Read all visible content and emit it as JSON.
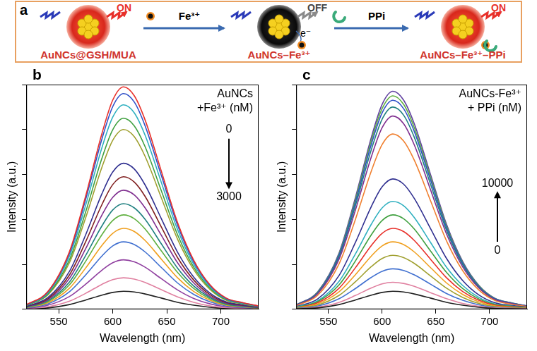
{
  "diagram": {
    "panel": "a",
    "states": [
      {
        "label": "AuNCs@GSH/MUA",
        "emission": "ON"
      },
      {
        "label": "AuNCs–Fe³⁺",
        "emission": "OFF",
        "electron": "e⁻"
      },
      {
        "label": "AuNCs–Fe³⁺–PPi",
        "emission": "ON"
      }
    ],
    "steps": [
      {
        "reagent": "Fe³⁺"
      },
      {
        "reagent": "PPi"
      }
    ]
  },
  "chart_data": [
    {
      "type": "line",
      "panel": "b",
      "xlabel": "Wavelength (nm)",
      "ylabel": "Intensity (a.u.)",
      "xlim": [
        520,
        735
      ],
      "ylim": [
        0,
        100
      ],
      "xticks": [
        550,
        600,
        650,
        700
      ],
      "yticks": [
        0,
        20,
        40,
        60,
        80,
        100
      ],
      "tick_labels": "x",
      "grid": false,
      "annotation": {
        "text": [
          "AuNCs",
          "+Fe³⁺ (nM)"
        ],
        "arrow_labels": [
          0,
          3000
        ]
      },
      "x": [
        520,
        540,
        560,
        575,
        590,
        600,
        610,
        620,
        630,
        645,
        660,
        675,
        690,
        705,
        720,
        735
      ],
      "series": [
        {
          "color": "#e8302a",
          "values": [
            2.0,
            7.9,
            25.7,
            50.5,
            78.2,
            93.1,
            99,
            95.0,
            84.2,
            61.4,
            38.6,
            21.8,
            10.9,
            5.0,
            3.0,
            1.5
          ]
        },
        {
          "color": "#3050c8",
          "values": [
            1.9,
            7.7,
            25.0,
            49.0,
            75.8,
            90.2,
            96,
            92.2,
            81.6,
            59.5,
            37.4,
            21.1,
            10.6,
            4.8,
            2.9,
            1.4
          ]
        },
        {
          "color": "#30b0c0",
          "values": [
            1.8,
            7.3,
            23.7,
            46.4,
            71.9,
            85.5,
            91,
            87.4,
            77.4,
            56.4,
            35.5,
            20.0,
            10.0,
            4.6,
            2.7,
            1.4
          ]
        },
        {
          "color": "#40a040",
          "values": [
            1.7,
            6.8,
            22.1,
            43.4,
            67.2,
            79.9,
            85,
            81.6,
            72.3,
            52.7,
            33.2,
            18.7,
            9.4,
            4.3,
            2.6,
            1.3
          ]
        },
        {
          "color": "#a0a030",
          "values": [
            1.6,
            6.4,
            20.8,
            40.8,
            63.2,
            75.2,
            80,
            76.8,
            68.0,
            49.6,
            31.2,
            17.6,
            8.8,
            4.0,
            2.4,
            1.2
          ]
        },
        {
          "color": "#303090",
          "values": [
            1.3,
            5.2,
            16.9,
            33.2,
            51.4,
            61.1,
            65,
            62.4,
            55.3,
            40.3,
            25.4,
            14.3,
            7.2,
            3.3,
            2.0,
            1.0
          ]
        },
        {
          "color": "#802020",
          "values": [
            1.2,
            4.7,
            15.3,
            30.1,
            46.6,
            55.5,
            59,
            56.6,
            50.2,
            36.6,
            23.0,
            13.0,
            6.5,
            3.0,
            1.8,
            0.9
          ]
        },
        {
          "color": "#803090",
          "values": [
            1.1,
            4.2,
            13.8,
            27.0,
            41.9,
            49.8,
            53,
            50.9,
            45.1,
            32.9,
            20.7,
            11.7,
            5.8,
            2.7,
            1.6,
            0.8
          ]
        },
        {
          "color": "#208080",
          "values": [
            0.9,
            3.8,
            12.2,
            24.0,
            37.1,
            44.2,
            47,
            45.1,
            40.0,
            29.1,
            18.3,
            10.3,
            5.2,
            2.4,
            1.4,
            0.7
          ]
        },
        {
          "color": "#60b040",
          "values": [
            0.8,
            3.4,
            10.9,
            21.4,
            33.2,
            39.5,
            42,
            40.3,
            35.7,
            26.0,
            16.4,
            9.2,
            4.6,
            2.1,
            1.3,
            0.6
          ]
        },
        {
          "color": "#f0a020",
          "values": [
            0.7,
            2.9,
            9.4,
            18.4,
            28.4,
            33.8,
            36,
            34.6,
            30.6,
            22.3,
            14.0,
            7.9,
            4.0,
            1.8,
            1.1,
            0.5
          ]
        },
        {
          "color": "#4070d0",
          "values": [
            0.6,
            2.4,
            7.8,
            15.3,
            23.7,
            28.2,
            30,
            28.8,
            25.5,
            18.6,
            11.7,
            6.6,
            3.3,
            1.5,
            0.9,
            0.5
          ]
        },
        {
          "color": "#9040a0",
          "values": [
            0.4,
            1.8,
            5.7,
            11.2,
            17.4,
            20.7,
            22,
            21.1,
            18.7,
            13.6,
            8.6,
            4.8,
            2.4,
            1.1,
            0.7,
            0.3
          ]
        },
        {
          "color": "#e080a0",
          "values": [
            0.3,
            1.1,
            3.6,
            7.1,
            11.1,
            13.2,
            14,
            13.4,
            11.9,
            8.7,
            5.5,
            3.1,
            1.5,
            0.7,
            0.4,
            0.2
          ]
        },
        {
          "color": "#202020",
          "values": [
            0.2,
            0.6,
            2.1,
            4.1,
            6.3,
            7.5,
            8,
            7.7,
            6.8,
            5.0,
            3.1,
            1.8,
            0.9,
            0.4,
            0.2,
            0.1
          ]
        }
      ]
    },
    {
      "type": "line",
      "panel": "c",
      "xlabel": "Wavelength (nm)",
      "ylabel": "Intensity (a.u.)",
      "xlim": [
        520,
        735
      ],
      "ylim": [
        0,
        100
      ],
      "xticks": [
        550,
        600,
        650,
        700
      ],
      "yticks": [
        0,
        20,
        40,
        60,
        80,
        100
      ],
      "tick_labels": "x",
      "grid": false,
      "annotation": {
        "text": [
          "AuNCs-Fe³⁺",
          "+ PPi (nM)"
        ],
        "arrow_labels": [
          10000,
          0
        ]
      },
      "x": [
        520,
        540,
        560,
        575,
        590,
        600,
        610,
        620,
        630,
        645,
        660,
        675,
        690,
        705,
        720,
        735
      ],
      "series": [
        {
          "color": "#202020",
          "values": [
            0.2,
            0.6,
            2.1,
            4.1,
            6.3,
            7.5,
            8,
            7.7,
            6.8,
            5.0,
            3.1,
            1.8,
            0.9,
            0.4,
            0.2,
            0.1
          ]
        },
        {
          "color": "#e080a0",
          "values": [
            0.2,
            1.0,
            3.1,
            6.1,
            9.5,
            11.3,
            12,
            11.5,
            10.2,
            7.4,
            4.7,
            2.6,
            1.3,
            0.6,
            0.4,
            0.2
          ]
        },
        {
          "color": "#4070d0",
          "values": [
            0.4,
            1.4,
            4.7,
            9.2,
            14.2,
            16.9,
            18,
            17.3,
            15.3,
            11.2,
            7.0,
            4.0,
            2.0,
            0.9,
            0.5,
            0.3
          ]
        },
        {
          "color": "#a0a030",
          "values": [
            0.5,
            1.9,
            6.2,
            12.2,
            19.0,
            22.6,
            24,
            23.0,
            20.4,
            14.9,
            9.4,
            5.3,
            2.6,
            1.2,
            0.7,
            0.4
          ]
        },
        {
          "color": "#f0a020",
          "values": [
            0.6,
            2.4,
            7.8,
            15.3,
            23.7,
            28.2,
            30,
            28.8,
            25.5,
            18.6,
            11.7,
            6.6,
            3.3,
            1.5,
            0.9,
            0.5
          ]
        },
        {
          "color": "#e8302a",
          "values": [
            0.7,
            2.9,
            9.4,
            18.4,
            28.4,
            33.8,
            36,
            34.6,
            30.6,
            22.3,
            14.0,
            7.9,
            4.0,
            1.8,
            1.1,
            0.5
          ]
        },
        {
          "color": "#40a040",
          "values": [
            0.8,
            3.4,
            10.9,
            21.4,
            33.2,
            39.5,
            42,
            40.3,
            35.7,
            26.0,
            16.4,
            9.2,
            4.6,
            2.1,
            1.3,
            0.6
          ]
        },
        {
          "color": "#30b0c0",
          "values": [
            1.0,
            3.8,
            12.5,
            24.5,
            37.9,
            45.1,
            48,
            46.1,
            40.8,
            29.8,
            18.7,
            10.6,
            5.3,
            2.4,
            1.4,
            0.7
          ]
        },
        {
          "color": "#303090",
          "values": [
            1.2,
            4.6,
            15.1,
            29.6,
            45.8,
            54.5,
            58,
            55.7,
            49.3,
            36.0,
            22.6,
            12.8,
            6.4,
            2.9,
            1.7,
            0.9
          ]
        },
        {
          "color": "#f08030",
          "values": [
            1.6,
            6.2,
            20.3,
            39.8,
            61.6,
            73.3,
            78,
            74.9,
            66.3,
            48.4,
            30.4,
            17.2,
            8.6,
            3.9,
            2.3,
            1.2
          ]
        },
        {
          "color": "#803090",
          "values": [
            1.7,
            6.9,
            22.4,
            43.9,
            67.9,
            80.8,
            86,
            82.6,
            73.1,
            53.3,
            33.5,
            18.9,
            9.5,
            4.3,
            2.6,
            1.3
          ]
        },
        {
          "color": "#208080",
          "values": [
            1.8,
            7.2,
            23.4,
            45.9,
            71.1,
            84.6,
            90,
            86.4,
            76.5,
            55.8,
            35.1,
            19.8,
            9.9,
            4.5,
            2.7,
            1.4
          ]
        },
        {
          "color": "#3050c8",
          "values": [
            1.9,
            7.4,
            24.2,
            47.4,
            73.5,
            87.4,
            93,
            89.3,
            79.1,
            57.7,
            36.3,
            20.5,
            10.2,
            4.7,
            2.8,
            1.4
          ]
        },
        {
          "color": "#60b040",
          "values": [
            1.9,
            7.6,
            24.7,
            48.5,
            75.1,
            89.3,
            95,
            91.2,
            80.8,
            58.9,
            37.1,
            20.9,
            10.5,
            4.8,
            2.9,
            1.4
          ]
        },
        {
          "color": "#6040a0",
          "values": [
            1.9,
            7.8,
            25.2,
            49.5,
            76.6,
            91.2,
            97,
            93.1,
            82.5,
            60.1,
            37.8,
            21.3,
            10.7,
            4.9,
            2.9,
            1.5
          ]
        }
      ]
    }
  ]
}
